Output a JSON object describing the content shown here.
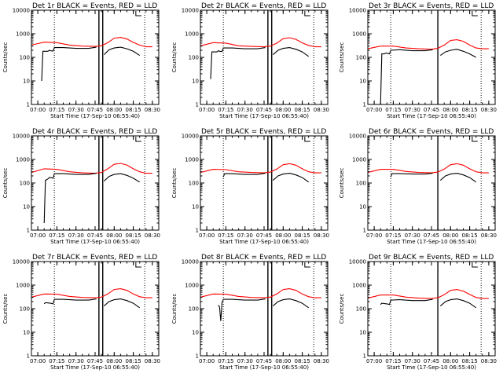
{
  "chart_data": {
    "type": "line",
    "layout": "3x3 grid",
    "y_scale": "log",
    "ylim": [
      1,
      10000
    ],
    "y_ticks": [
      "1",
      "10",
      "100",
      "1000",
      "10000"
    ],
    "x_ticks": [
      "07:00",
      "07:15",
      "07:30",
      "07:45",
      "08:00",
      "08:15",
      "08:30"
    ],
    "xlim": [
      "06:55",
      "08:35"
    ],
    "ylabel": "Counts/sec",
    "xlabel": "Start Time (17-Sep-10 06:55:40)",
    "colors": {
      "events": "#000000",
      "lld": "#ff0000"
    },
    "panels": [
      {
        "title": "Det 1r BLACK = Events, RED = LLD",
        "dotted_lines": [
          "07:13",
          "08:24"
        ],
        "solid_lines": [
          "07:48",
          "07:51"
        ],
        "marker_at": "08:17",
        "series": [
          {
            "key": "lld",
            "x": [
              "06:55",
              "07:05",
              "07:15",
              "07:25",
              "07:35",
              "07:45",
              "07:50",
              "07:55",
              "08:00",
              "08:05",
              "08:10",
              "08:15",
              "08:20",
              "08:25",
              "08:30"
            ],
            "values": [
              330,
              440,
              420,
              330,
              300,
              290,
              310,
              420,
              650,
              700,
              600,
              430,
              330,
              280,
              280
            ]
          },
          {
            "key": "events_a",
            "x": [
              "07:03",
              "07:04",
              "07:08",
              "07:09",
              "07:10",
              "07:12",
              "07:13",
              "07:20",
              "07:30",
              "07:40",
              "07:46"
            ],
            "values": [
              10,
              180,
              180,
              200,
              190,
              185,
              260,
              260,
              240,
              240,
              270
            ]
          },
          {
            "key": "events_b",
            "x": [
              "07:52",
              "07:56",
              "08:00",
              "08:05",
              "08:10",
              "08:15",
              "08:20"
            ],
            "values": [
              130,
              210,
              250,
              270,
              230,
              180,
              120
            ]
          }
        ]
      },
      {
        "title": "Det 2r BLACK = Events, RED = LLD",
        "dotted_lines": [
          "07:13",
          "08:24"
        ],
        "solid_lines": [
          "07:48",
          "07:51"
        ],
        "marker_at": "08:17",
        "series": [
          {
            "key": "lld",
            "x": [
              "06:55",
              "07:05",
              "07:15",
              "07:25",
              "07:35",
              "07:45",
              "07:50",
              "07:55",
              "08:00",
              "08:05",
              "08:10",
              "08:15",
              "08:20",
              "08:25",
              "08:30"
            ],
            "values": [
              310,
              420,
              400,
              310,
              290,
              280,
              300,
              400,
              620,
              680,
              580,
              410,
              320,
              280,
              280
            ]
          },
          {
            "key": "events_a",
            "x": [
              "07:03",
              "07:04",
              "07:08",
              "07:09",
              "07:10",
              "07:12",
              "07:13",
              "07:20",
              "07:30",
              "07:40",
              "07:46"
            ],
            "values": [
              12,
              170,
              170,
              190,
              180,
              175,
              250,
              250,
              230,
              230,
              260
            ]
          },
          {
            "key": "events_b",
            "x": [
              "07:52",
              "07:56",
              "08:00",
              "08:05",
              "08:10",
              "08:15",
              "08:20"
            ],
            "values": [
              130,
              200,
              240,
              260,
              220,
              170,
              110
            ]
          }
        ]
      },
      {
        "title": "Det 3r BLACK = Events, RED = LLD",
        "dotted_lines": [
          "07:13",
          "08:24"
        ],
        "solid_lines": [
          "07:50"
        ],
        "marker_at": "08:17",
        "series": [
          {
            "key": "lld",
            "x": [
              "06:55",
              "07:05",
              "07:15",
              "07:25",
              "07:35",
              "07:45",
              "07:50",
              "07:55",
              "08:00",
              "08:05",
              "08:10",
              "08:15",
              "08:20",
              "08:25",
              "08:30"
            ],
            "values": [
              230,
              300,
              300,
              250,
              230,
              220,
              240,
              330,
              520,
              560,
              480,
              330,
              250,
              230,
              230
            ]
          },
          {
            "key": "events_a",
            "x": [
              "07:05",
              "07:06",
              "07:08",
              "07:09",
              "07:10",
              "07:12",
              "07:13",
              "07:20",
              "07:30",
              "07:40",
              "07:46"
            ],
            "values": [
              1,
              140,
              140,
              150,
              150,
              140,
              200,
              210,
              190,
              190,
              210
            ]
          },
          {
            "key": "events_b",
            "x": [
              "07:52",
              "07:56",
              "08:00",
              "08:05",
              "08:10",
              "08:15",
              "08:20"
            ],
            "values": [
              120,
              170,
              200,
              220,
              180,
              140,
              100
            ]
          }
        ]
      },
      {
        "title": "Det 4r BLACK = Events, RED = LLD",
        "dotted_lines": [
          "07:13",
          "08:24"
        ],
        "solid_lines": [
          "07:48",
          "07:51"
        ],
        "marker_at": "08:17",
        "series": [
          {
            "key": "lld",
            "x": [
              "06:55",
              "07:05",
              "07:15",
              "07:25",
              "07:35",
              "07:45",
              "07:50",
              "07:55",
              "08:00",
              "08:05",
              "08:10",
              "08:15",
              "08:20",
              "08:25",
              "08:30"
            ],
            "values": [
              280,
              400,
              380,
              300,
              270,
              260,
              280,
              400,
              620,
              680,
              580,
              400,
              300,
              260,
              260
            ]
          },
          {
            "key": "events_a",
            "x": [
              "07:05",
              "07:06",
              "07:08",
              "07:09",
              "07:10",
              "07:12",
              "07:13",
              "07:20",
              "07:30",
              "07:40",
              "07:46"
            ],
            "values": [
              2,
              130,
              150,
              170,
              170,
              160,
              250,
              250,
              230,
              230,
              260
            ]
          },
          {
            "key": "events_b",
            "x": [
              "07:52",
              "07:56",
              "08:00",
              "08:05",
              "08:10",
              "08:15",
              "08:20"
            ],
            "values": [
              120,
              190,
              230,
              250,
              210,
              160,
              110
            ]
          }
        ]
      },
      {
        "title": "Det 5r BLACK = Events, RED = LLD",
        "dotted_lines": [
          "07:13",
          "08:24"
        ],
        "solid_lines": [
          "07:48",
          "07:51"
        ],
        "marker_at": "08:17",
        "series": [
          {
            "key": "lld",
            "x": [
              "06:55",
              "07:05",
              "07:15",
              "07:25",
              "07:35",
              "07:45",
              "07:50",
              "07:55",
              "08:00",
              "08:05",
              "08:10",
              "08:15",
              "08:20",
              "08:25",
              "08:30"
            ],
            "values": [
              280,
              380,
              370,
              300,
              280,
              270,
              290,
              390,
              600,
              660,
              570,
              400,
              300,
              270,
              270
            ]
          },
          {
            "key": "events_a",
            "x": [
              "07:13",
              "07:14",
              "07:20",
              "07:30",
              "07:40",
              "07:46"
            ],
            "values": [
              180,
              250,
              250,
              230,
              230,
              260
            ]
          },
          {
            "key": "events_b",
            "x": [
              "07:52",
              "07:56",
              "08:00",
              "08:05",
              "08:10",
              "08:15",
              "08:20"
            ],
            "values": [
              130,
              200,
              240,
              260,
              220,
              170,
              110
            ]
          }
        ]
      },
      {
        "title": "Det 6r BLACK = Events, RED = LLD",
        "dotted_lines": [
          "07:13",
          "08:24"
        ],
        "solid_lines": [
          "07:50"
        ],
        "marker_at": "08:17",
        "series": [
          {
            "key": "lld",
            "x": [
              "06:55",
              "07:05",
              "07:15",
              "07:25",
              "07:35",
              "07:45",
              "07:50",
              "07:55",
              "08:00",
              "08:05",
              "08:10",
              "08:15",
              "08:20",
              "08:25",
              "08:30"
            ],
            "values": [
              280,
              380,
              380,
              310,
              280,
              270,
              290,
              390,
              600,
              660,
              570,
              400,
              300,
              270,
              270
            ]
          },
          {
            "key": "events_a",
            "x": [
              "07:13",
              "07:14",
              "07:20",
              "07:30",
              "07:40",
              "07:46"
            ],
            "values": [
              180,
              250,
              250,
              240,
              240,
              260
            ]
          },
          {
            "key": "events_b",
            "x": [
              "07:52",
              "07:56",
              "08:00",
              "08:05",
              "08:10",
              "08:15",
              "08:20"
            ],
            "values": [
              130,
              200,
              240,
              260,
              220,
              170,
              110
            ]
          }
        ]
      },
      {
        "title": "Det 7r BLACK = Events, RED = LLD",
        "dotted_lines": [
          "07:13",
          "08:24"
        ],
        "solid_lines": [
          "07:48",
          "07:51"
        ],
        "marker_at": "08:17",
        "series": [
          {
            "key": "lld",
            "x": [
              "06:55",
              "07:05",
              "07:15",
              "07:25",
              "07:35",
              "07:45",
              "07:50",
              "07:55",
              "08:00",
              "08:05",
              "08:10",
              "08:15",
              "08:20",
              "08:25",
              "08:30"
            ],
            "values": [
              310,
              420,
              410,
              330,
              300,
              290,
              310,
              420,
              650,
              700,
              600,
              420,
              320,
              290,
              290
            ]
          },
          {
            "key": "events_a",
            "x": [
              "07:05",
              "07:06",
              "07:10",
              "07:12",
              "07:13",
              "07:20",
              "07:30",
              "07:40",
              "07:46"
            ],
            "values": [
              160,
              180,
              170,
              160,
              250,
              250,
              230,
              230,
              260
            ]
          },
          {
            "key": "events_b",
            "x": [
              "07:52",
              "07:56",
              "08:00",
              "08:05",
              "08:10",
              "08:15",
              "08:20"
            ],
            "values": [
              130,
              200,
              240,
              260,
              220,
              170,
              110
            ]
          }
        ]
      },
      {
        "title": "Det 8r BLACK = Events, RED = LLD",
        "dotted_lines": [
          "07:13",
          "08:24"
        ],
        "solid_lines": [
          "07:48",
          "07:51"
        ],
        "marker_at": "08:17",
        "series": [
          {
            "key": "lld",
            "x": [
              "06:55",
              "07:05",
              "07:15",
              "07:25",
              "07:35",
              "07:45",
              "07:50",
              "07:55",
              "08:00",
              "08:05",
              "08:10",
              "08:15",
              "08:20",
              "08:25",
              "08:30"
            ],
            "values": [
              310,
              420,
              410,
              330,
              300,
              290,
              310,
              420,
              650,
              700,
              600,
              420,
              320,
              290,
              290
            ]
          },
          {
            "key": "events_a",
            "x": [
              "07:09",
              "07:10",
              "07:11",
              "07:12",
              "07:13",
              "07:20",
              "07:30",
              "07:40",
              "07:46"
            ],
            "values": [
              140,
              120,
              30,
              180,
              250,
              250,
              230,
              230,
              260
            ]
          },
          {
            "key": "events_b",
            "x": [
              "07:52",
              "07:56",
              "08:00",
              "08:05",
              "08:10",
              "08:15",
              "08:20"
            ],
            "values": [
              130,
              200,
              240,
              260,
              220,
              170,
              110
            ]
          }
        ]
      },
      {
        "title": "Det 9r BLACK = Events, RED = LLD",
        "dotted_lines": [
          "07:13",
          "08:24"
        ],
        "solid_lines": [
          "07:50"
        ],
        "marker_at": "08:17",
        "series": [
          {
            "key": "lld",
            "x": [
              "06:55",
              "07:05",
              "07:15",
              "07:25",
              "07:35",
              "07:45",
              "07:50",
              "07:55",
              "08:00",
              "08:05",
              "08:10",
              "08:15",
              "08:20",
              "08:25",
              "08:30"
            ],
            "values": [
              280,
              380,
              380,
              310,
              280,
              270,
              290,
              390,
              600,
              650,
              560,
              400,
              300,
              270,
              270
            ]
          },
          {
            "key": "events_a",
            "x": [
              "07:05",
              "07:06",
              "07:10",
              "07:12",
              "07:13",
              "07:20",
              "07:30",
              "07:40",
              "07:46"
            ],
            "values": [
              150,
              170,
              160,
              150,
              230,
              240,
              220,
              220,
              250
            ]
          },
          {
            "key": "events_b",
            "x": [
              "07:52",
              "07:56",
              "08:00",
              "08:05",
              "08:10",
              "08:15",
              "08:20"
            ],
            "values": [
              130,
              200,
              240,
              260,
              220,
              170,
              110
            ]
          }
        ]
      }
    ]
  }
}
